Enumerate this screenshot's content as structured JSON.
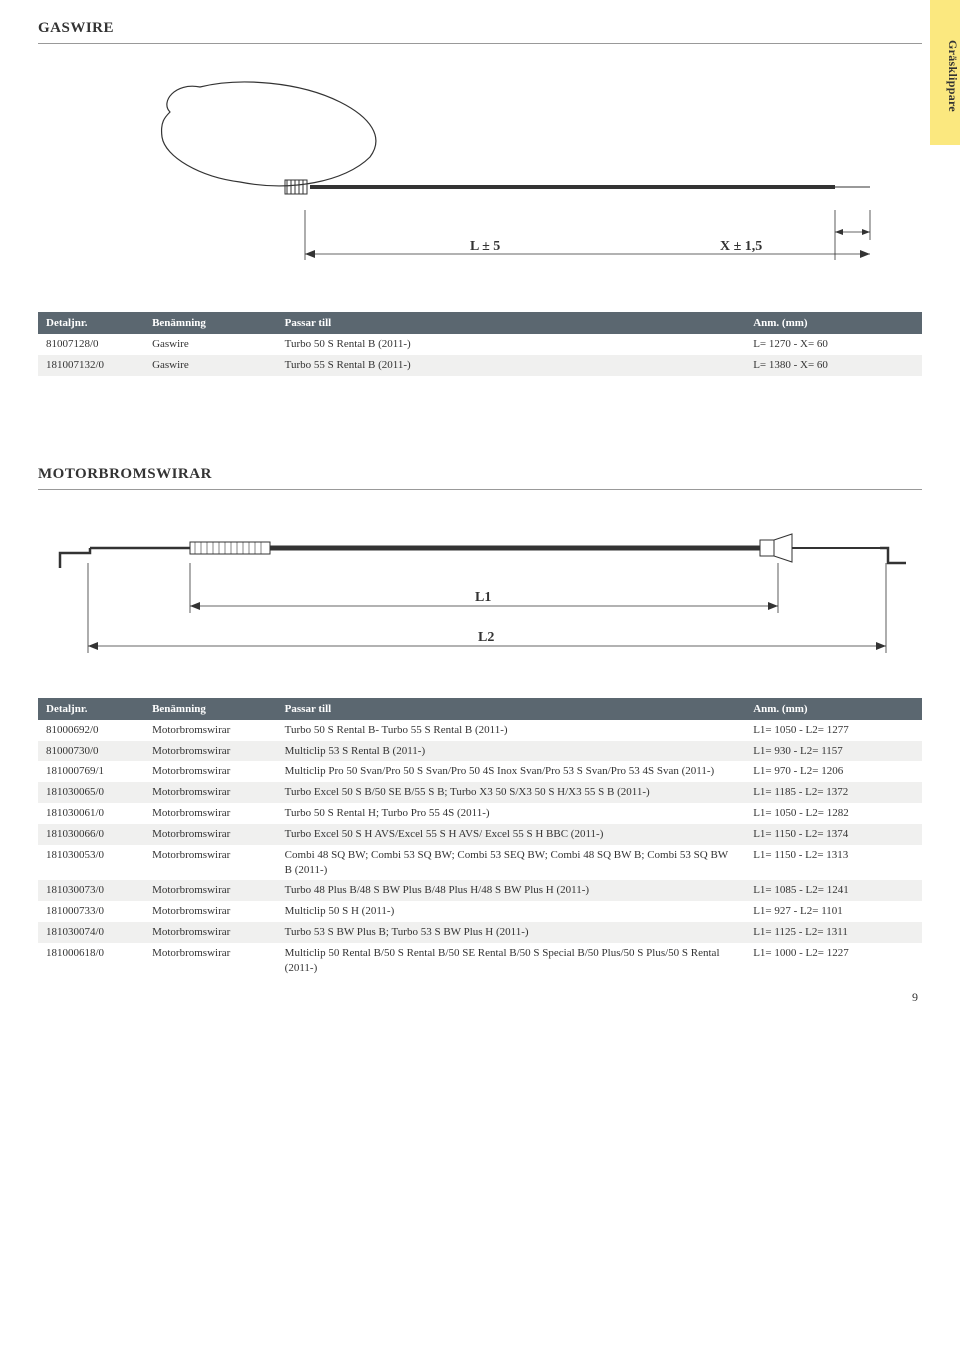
{
  "side_tab": "Gräsklippare",
  "page_number": "9",
  "gaswire": {
    "title": "GASWIRE",
    "dim_labels": {
      "l": "L ± 5",
      "x": "X ± 1,5"
    },
    "columns": [
      "Detaljnr.",
      "Benämning",
      "Passar till",
      "Anm. (mm)"
    ],
    "rows": [
      {
        "det": "81007128/0",
        "ben": "Gaswire",
        "pas": "Turbo 50 S Rental B (2011-)",
        "anm": "L= 1270 - X= 60"
      },
      {
        "det": "181007132/0",
        "ben": "Gaswire",
        "pas": "Turbo 55 S Rental B (2011-)",
        "anm": "L= 1380 - X= 60"
      }
    ]
  },
  "motor": {
    "title": "MOTORBROMSWIRAR",
    "dim_labels": {
      "l1": "L1",
      "l2": "L2"
    },
    "columns": [
      "Detaljnr.",
      "Benämning",
      "Passar till",
      "Anm. (mm)"
    ],
    "rows": [
      {
        "det": "81000692/0",
        "ben": "Motorbromswirar",
        "pas": "Turbo 50 S Rental B- Turbo 55 S Rental B (2011-)",
        "anm": "L1= 1050 - L2= 1277"
      },
      {
        "det": "81000730/0",
        "ben": "Motorbromswirar",
        "pas": "Multiclip 53 S Rental B (2011-)",
        "anm": "L1= 930 - L2= 1157"
      },
      {
        "det": "181000769/1",
        "ben": "Motorbromswirar",
        "pas": "Multiclip Pro 50 Svan/Pro 50 S Svan/Pro 50 4S Inox Svan/Pro 53 S Svan/Pro 53 4S Svan (2011-)",
        "anm": "L1= 970 - L2= 1206"
      },
      {
        "det": "181030065/0",
        "ben": "Motorbromswirar",
        "pas": "Turbo Excel 50 S B/50 SE B/55 S B; Turbo X3 50 S/X3 50 S H/X3 55 S B (2011-)",
        "anm": "L1= 1185 - L2= 1372"
      },
      {
        "det": "181030061/0",
        "ben": "Motorbromswirar",
        "pas": "Turbo 50 S Rental H; Turbo Pro 55 4S (2011-)",
        "anm": "L1= 1050 - L2= 1282"
      },
      {
        "det": "181030066/0",
        "ben": "Motorbromswirar",
        "pas": "Turbo Excel 50 S H AVS/Excel 55 S H AVS/ Excel 55 S H BBC (2011-)",
        "anm": "L1= 1150 - L2= 1374"
      },
      {
        "det": "181030053/0",
        "ben": "Motorbromswirar",
        "pas": "Combi 48 SQ BW; Combi 53 SQ BW; Combi 53 SEQ BW; Combi 48 SQ BW B; Combi 53 SQ BW B (2011-)",
        "anm": "L1= 1150 - L2= 1313"
      },
      {
        "det": "181030073/0",
        "ben": "Motorbromswirar",
        "pas": "Turbo 48 Plus B/48 S BW Plus B/48 Plus H/48 S BW Plus H (2011-)",
        "anm": "L1= 1085 - L2= 1241"
      },
      {
        "det": "181000733/0",
        "ben": "Motorbromswirar",
        "pas": "Multiclip 50 S H (2011-)",
        "anm": "L1= 927 - L2= 1101"
      },
      {
        "det": "181030074/0",
        "ben": "Motorbromswirar",
        "pas": "Turbo 53 S BW Plus B; Turbo 53 S BW Plus H (2011-)",
        "anm": "L1= 1125 - L2= 1311"
      },
      {
        "det": "181000618/0",
        "ben": "Motorbromswirar",
        "pas": "Multiclip 50 Rental B/50 S Rental B/50 SE Rental B/50 S Special B/50 Plus/50 S Plus/50 S Rental (2011-)",
        "anm": "L1= 1000 - L2= 1227"
      }
    ]
  },
  "style": {
    "header_bg": "#5b6770",
    "header_fg": "#ffffff",
    "row_alt_bg": "#f0f0ef",
    "tab_bg": "#fbe87f",
    "line_color": "#333333"
  }
}
